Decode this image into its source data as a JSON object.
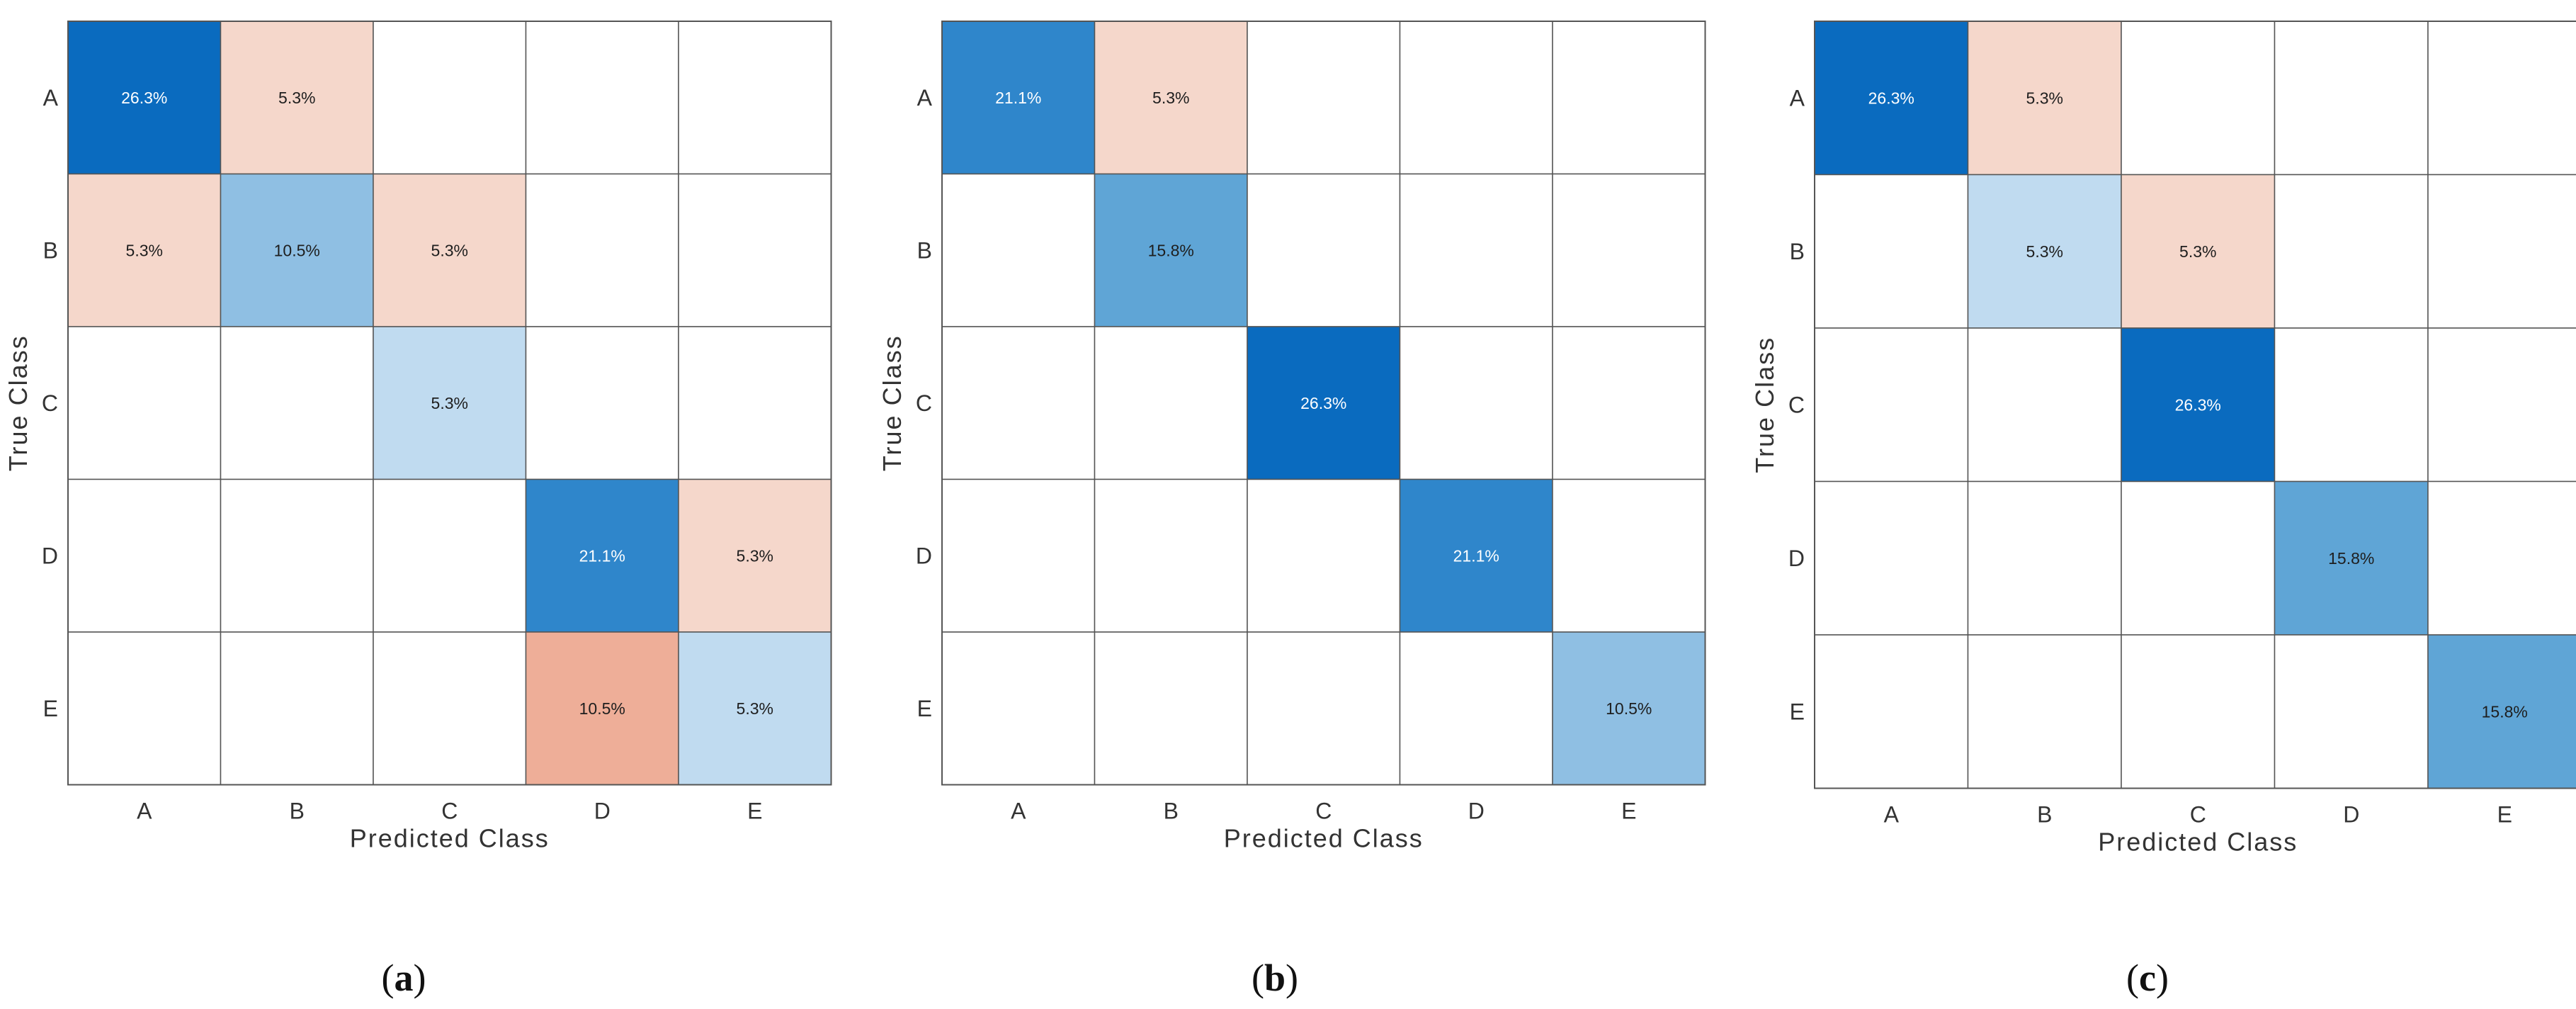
{
  "chart_data": [
    {
      "type": "heatmap",
      "subtype": "confusion-matrix",
      "panel_label": "a",
      "xlabel": "Predicted Class",
      "ylabel": "True Class",
      "x_categories": [
        "A",
        "B",
        "C",
        "D",
        "E"
      ],
      "y_categories": [
        "A",
        "B",
        "C",
        "D",
        "E"
      ],
      "values": [
        [
          26.3,
          5.3,
          null,
          null,
          null
        ],
        [
          5.3,
          10.5,
          5.3,
          null,
          null
        ],
        [
          null,
          null,
          5.3,
          null,
          null
        ],
        [
          null,
          null,
          null,
          21.1,
          5.3
        ],
        [
          null,
          null,
          null,
          10.5,
          5.3
        ]
      ],
      "value_labels": [
        [
          "26.3%",
          "5.3%",
          "",
          "",
          ""
        ],
        [
          "5.3%",
          "10.5%",
          "5.3%",
          "",
          ""
        ],
        [
          "",
          "",
          "5.3%",
          "",
          ""
        ],
        [
          "",
          "",
          "",
          "21.1%",
          "5.3%"
        ],
        [
          "",
          "",
          "",
          "10.5%",
          "5.3%"
        ]
      ]
    },
    {
      "type": "heatmap",
      "subtype": "confusion-matrix",
      "panel_label": "b",
      "xlabel": "Predicted Class",
      "ylabel": "True Class",
      "x_categories": [
        "A",
        "B",
        "C",
        "D",
        "E"
      ],
      "y_categories": [
        "A",
        "B",
        "C",
        "D",
        "E"
      ],
      "values": [
        [
          21.1,
          5.3,
          null,
          null,
          null
        ],
        [
          null,
          15.8,
          null,
          null,
          null
        ],
        [
          null,
          null,
          26.3,
          null,
          null
        ],
        [
          null,
          null,
          null,
          21.1,
          null
        ],
        [
          null,
          null,
          null,
          null,
          10.5
        ]
      ],
      "value_labels": [
        [
          "21.1%",
          "5.3%",
          "",
          "",
          ""
        ],
        [
          "",
          "15.8%",
          "",
          "",
          ""
        ],
        [
          "",
          "",
          "26.3%",
          "",
          ""
        ],
        [
          "",
          "",
          "",
          "21.1%",
          ""
        ],
        [
          "",
          "",
          "",
          "",
          "10.5%"
        ]
      ]
    },
    {
      "type": "heatmap",
      "subtype": "confusion-matrix",
      "panel_label": "c",
      "xlabel": "Predicted Class",
      "ylabel": "True Class",
      "x_categories": [
        "A",
        "B",
        "C",
        "D",
        "E"
      ],
      "y_categories": [
        "A",
        "B",
        "C",
        "D",
        "E"
      ],
      "values": [
        [
          26.3,
          5.3,
          null,
          null,
          null
        ],
        [
          null,
          5.3,
          5.3,
          null,
          null
        ],
        [
          null,
          null,
          26.3,
          null,
          null
        ],
        [
          null,
          null,
          null,
          15.8,
          null
        ],
        [
          null,
          null,
          null,
          null,
          15.8
        ]
      ],
      "value_labels": [
        [
          "26.3%",
          "5.3%",
          "",
          "",
          ""
        ],
        [
          "",
          "5.3%",
          "5.3%",
          "",
          ""
        ],
        [
          "",
          "",
          "26.3%",
          "",
          ""
        ],
        [
          "",
          "",
          "",
          "15.8%",
          ""
        ],
        [
          "",
          "",
          "",
          "",
          "15.8%"
        ]
      ]
    }
  ],
  "colors": {
    "correct_levels": {
      "26.3": "#0a6bbf",
      "21.1": "#2f86cb",
      "15.8": "#5fa5d6",
      "10.5": "#8fbfe3",
      "5.3": "#c0dbf0"
    },
    "error_levels": {
      "5.3": "#f5d7cb",
      "10.5": "#eeae98"
    },
    "grid_line": "#555555",
    "text_dark": "#1e1e1e",
    "text_light": "#ffffff"
  }
}
